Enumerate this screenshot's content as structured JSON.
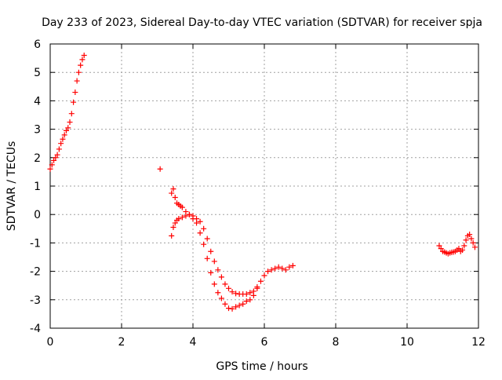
{
  "chart_data": {
    "type": "scatter",
    "title": "Day 233 of 2023, Sidereal Day-to-day VTEC variation (SDTVAR) for receiver spja",
    "xlabel": "GPS time / hours",
    "ylabel": "SDTVAR / TECUs",
    "xlim": [
      0,
      12
    ],
    "ylim": [
      -4,
      6
    ],
    "xticks": [
      0,
      2,
      4,
      6,
      8,
      10,
      12
    ],
    "yticks": [
      -4,
      -3,
      -2,
      -1,
      0,
      1,
      2,
      3,
      4,
      5,
      6
    ],
    "grid": true,
    "marker": "+",
    "series_color": "#ff0000",
    "segments": [
      {
        "name": "early rise",
        "x": [
          0.0,
          0.05,
          0.1,
          0.15,
          0.2,
          0.25,
          0.3,
          0.35,
          0.4,
          0.45,
          0.5,
          0.55,
          0.6,
          0.65,
          0.7,
          0.75,
          0.8,
          0.85,
          0.9,
          0.95
        ],
        "y": [
          1.6,
          1.75,
          1.9,
          2.0,
          2.1,
          2.3,
          2.5,
          2.65,
          2.8,
          2.95,
          3.05,
          3.25,
          3.55,
          3.95,
          4.3,
          4.7,
          5.0,
          5.25,
          5.45,
          5.6
        ]
      },
      {
        "name": "isolated point",
        "x": [
          3.08
        ],
        "y": [
          1.6
        ]
      },
      {
        "name": "upper arc",
        "x": [
          3.4,
          3.45,
          3.5,
          3.55,
          3.6,
          3.65,
          3.7,
          3.8,
          3.9,
          4.0,
          4.1,
          4.2,
          4.3,
          4.4,
          4.5,
          4.6,
          4.7,
          4.8,
          4.9,
          5.0,
          5.1,
          5.2,
          5.3,
          5.4,
          5.5,
          5.6,
          5.7,
          5.8,
          5.9,
          6.0,
          6.1,
          6.2,
          6.3,
          6.4,
          6.5,
          6.6,
          6.7,
          6.8
        ],
        "y": [
          0.75,
          0.9,
          0.6,
          0.4,
          0.35,
          0.3,
          0.25,
          0.1,
          0.0,
          -0.05,
          -0.15,
          -0.25,
          -0.5,
          -0.85,
          -1.3,
          -1.65,
          -1.95,
          -2.2,
          -2.45,
          -2.6,
          -2.72,
          -2.78,
          -2.8,
          -2.8,
          -2.8,
          -2.75,
          -2.7,
          -2.55,
          -2.35,
          -2.15,
          -2.0,
          -1.95,
          -1.9,
          -1.85,
          -1.9,
          -1.95,
          -1.85,
          -1.8
        ]
      },
      {
        "name": "lower arc",
        "x": [
          3.4,
          3.45,
          3.5,
          3.55,
          3.6,
          3.7,
          3.8,
          3.9,
          4.0,
          4.1,
          4.2,
          4.3,
          4.4,
          4.5,
          4.6,
          4.7,
          4.8,
          4.9,
          5.0,
          5.1,
          5.2,
          5.3,
          5.4,
          5.5,
          5.6,
          5.7,
          5.8
        ],
        "y": [
          -0.75,
          -0.45,
          -0.3,
          -0.2,
          -0.15,
          -0.1,
          -0.05,
          0.0,
          -0.15,
          -0.3,
          -0.65,
          -1.05,
          -1.55,
          -2.05,
          -2.45,
          -2.75,
          -2.95,
          -3.15,
          -3.3,
          -3.32,
          -3.25,
          -3.2,
          -3.15,
          -3.05,
          -3.0,
          -2.85,
          -2.6
        ]
      },
      {
        "name": "late segment",
        "x": [
          10.9,
          10.95,
          11.0,
          11.05,
          11.1,
          11.15,
          11.2,
          11.25,
          11.3,
          11.35,
          11.4,
          11.45,
          11.5,
          11.55,
          11.6,
          11.65,
          11.7,
          11.75,
          11.8,
          11.85,
          11.9
        ],
        "y": [
          -1.1,
          -1.2,
          -1.3,
          -1.32,
          -1.35,
          -1.38,
          -1.35,
          -1.33,
          -1.32,
          -1.3,
          -1.25,
          -1.2,
          -1.3,
          -1.25,
          -1.1,
          -0.9,
          -0.75,
          -0.7,
          -0.85,
          -1.0,
          -1.15
        ]
      }
    ]
  }
}
